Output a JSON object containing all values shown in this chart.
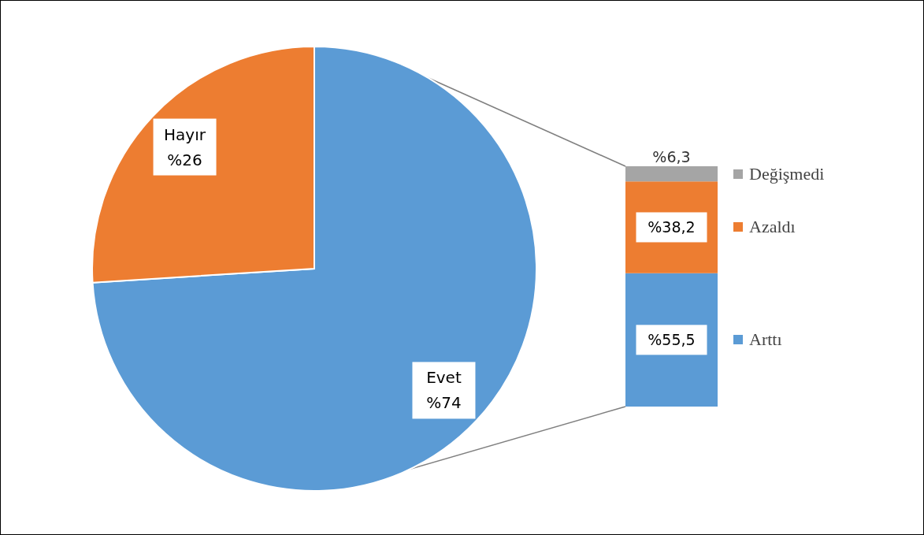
{
  "chart_data": [
    {
      "type": "pie",
      "categories": [
        "Evet",
        "Hayır"
      ],
      "values": [
        74,
        26
      ],
      "colors": [
        "#5b9bd5",
        "#ed7d31"
      ],
      "value_labels": [
        "%74",
        "%26"
      ],
      "legend": false
    },
    {
      "type": "bar",
      "stacked": true,
      "categories": [
        null
      ],
      "legend": "right",
      "series": [
        {
          "name": "Arttı",
          "color": "#5b9bd5",
          "values": [
            55.5
          ],
          "value_labels": [
            "%55,5"
          ]
        },
        {
          "name": "Azaldı",
          "color": "#ed7d31",
          "values": [
            38.2
          ],
          "value_labels": [
            "%38,2"
          ]
        },
        {
          "name": "Değişmedi",
          "color": "#a5a5a5",
          "values": [
            6.3
          ],
          "value_labels": [
            "%6,3"
          ]
        }
      ],
      "ylim": [
        0,
        100
      ]
    }
  ]
}
